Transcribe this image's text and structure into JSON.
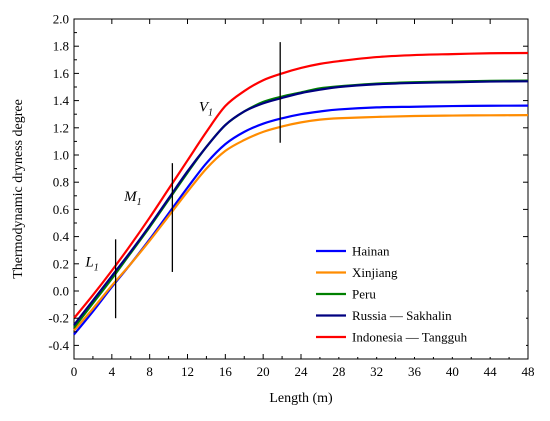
{
  "chart_data": {
    "type": "line",
    "title": "",
    "xlabel": "Length (m)",
    "ylabel": "Thermodynamic dryness degree",
    "xlim": [
      0,
      48
    ],
    "ylim": [
      -0.5,
      2.0
    ],
    "xticks": [
      0,
      4,
      8,
      12,
      16,
      20,
      24,
      28,
      32,
      36,
      40,
      44,
      48
    ],
    "yticks": [
      -0.4,
      -0.2,
      0.0,
      0.2,
      0.4,
      0.6,
      0.8,
      1.0,
      1.2,
      1.4,
      1.6,
      1.8,
      2.0
    ],
    "ytick_labels": [
      "-0.4",
      "-0.2",
      "0.0",
      "0.2",
      "0.4",
      "0.6",
      "0.8",
      "1.0",
      "1.2",
      "1.4",
      "1.6",
      "1.8",
      "2.0"
    ],
    "grid": false,
    "legend_position": "bottom-right",
    "series": [
      {
        "name": "Hainan",
        "color": "#0000ff",
        "points": [
          [
            0,
            -0.32
          ],
          [
            2,
            -0.15
          ],
          [
            4,
            0.03
          ],
          [
            6,
            0.2
          ],
          [
            8,
            0.38
          ],
          [
            10,
            0.57
          ],
          [
            12,
            0.76
          ],
          [
            14,
            0.94
          ],
          [
            16,
            1.08
          ],
          [
            18,
            1.17
          ],
          [
            20,
            1.23
          ],
          [
            22,
            1.27
          ],
          [
            24,
            1.3
          ],
          [
            26,
            1.32
          ],
          [
            28,
            1.335
          ],
          [
            32,
            1.35
          ],
          [
            36,
            1.355
          ],
          [
            40,
            1.36
          ],
          [
            44,
            1.362
          ],
          [
            48,
            1.363
          ]
        ]
      },
      {
        "name": "Xinjiang",
        "color": "#ff8c00",
        "points": [
          [
            0,
            -0.29
          ],
          [
            2,
            -0.13
          ],
          [
            4,
            0.04
          ],
          [
            6,
            0.2
          ],
          [
            8,
            0.37
          ],
          [
            10,
            0.55
          ],
          [
            12,
            0.73
          ],
          [
            14,
            0.9
          ],
          [
            16,
            1.03
          ],
          [
            18,
            1.11
          ],
          [
            20,
            1.17
          ],
          [
            22,
            1.21
          ],
          [
            24,
            1.24
          ],
          [
            26,
            1.26
          ],
          [
            28,
            1.27
          ],
          [
            32,
            1.28
          ],
          [
            36,
            1.287
          ],
          [
            40,
            1.29
          ],
          [
            44,
            1.292
          ],
          [
            48,
            1.293
          ]
        ]
      },
      {
        "name": "Peru",
        "color": "#008000",
        "points": [
          [
            0,
            -0.27
          ],
          [
            2,
            -0.09
          ],
          [
            4,
            0.09
          ],
          [
            6,
            0.28
          ],
          [
            8,
            0.47
          ],
          [
            10,
            0.67
          ],
          [
            12,
            0.87
          ],
          [
            14,
            1.06
          ],
          [
            16,
            1.22
          ],
          [
            18,
            1.32
          ],
          [
            20,
            1.39
          ],
          [
            22,
            1.43
          ],
          [
            24,
            1.46
          ],
          [
            26,
            1.49
          ],
          [
            28,
            1.505
          ],
          [
            32,
            1.525
          ],
          [
            36,
            1.535
          ],
          [
            40,
            1.54
          ],
          [
            44,
            1.545
          ],
          [
            48,
            1.547
          ]
        ]
      },
      {
        "name": "Russia — Sakhalin",
        "color": "#000080",
        "points": [
          [
            0,
            -0.25
          ],
          [
            2,
            -0.07
          ],
          [
            4,
            0.11
          ],
          [
            6,
            0.29
          ],
          [
            8,
            0.48
          ],
          [
            10,
            0.68
          ],
          [
            12,
            0.88
          ],
          [
            14,
            1.06
          ],
          [
            16,
            1.22
          ],
          [
            18,
            1.32
          ],
          [
            20,
            1.38
          ],
          [
            22,
            1.42
          ],
          [
            24,
            1.455
          ],
          [
            26,
            1.48
          ],
          [
            28,
            1.5
          ],
          [
            32,
            1.52
          ],
          [
            36,
            1.53
          ],
          [
            40,
            1.535
          ],
          [
            44,
            1.54
          ],
          [
            48,
            1.542
          ]
        ]
      },
      {
        "name": "Indonesia — Tangguh",
        "color": "#ff0000",
        "points": [
          [
            0,
            -0.2
          ],
          [
            2,
            -0.03
          ],
          [
            4,
            0.15
          ],
          [
            6,
            0.34
          ],
          [
            8,
            0.54
          ],
          [
            10,
            0.75
          ],
          [
            12,
            0.96
          ],
          [
            14,
            1.17
          ],
          [
            16,
            1.36
          ],
          [
            18,
            1.47
          ],
          [
            20,
            1.55
          ],
          [
            22,
            1.6
          ],
          [
            24,
            1.64
          ],
          [
            26,
            1.67
          ],
          [
            28,
            1.69
          ],
          [
            32,
            1.72
          ],
          [
            36,
            1.735
          ],
          [
            40,
            1.742
          ],
          [
            44,
            1.748
          ],
          [
            48,
            1.75
          ]
        ]
      }
    ],
    "markers": [
      {
        "x": 4.4,
        "y_from": -0.2,
        "y_to": 0.38
      },
      {
        "x": 10.4,
        "y_from": 0.14,
        "y_to": 0.94
      },
      {
        "x": 21.8,
        "y_from": 1.09,
        "y_to": 1.83
      }
    ],
    "annotations": [
      {
        "main": "L",
        "sub": "1",
        "x": 1.2,
        "y": 0.18
      },
      {
        "main": "M",
        "sub": "1",
        "x": 5.3,
        "y": 0.66
      },
      {
        "main": "V",
        "sub": "1",
        "x": 13.2,
        "y": 1.32
      }
    ]
  }
}
